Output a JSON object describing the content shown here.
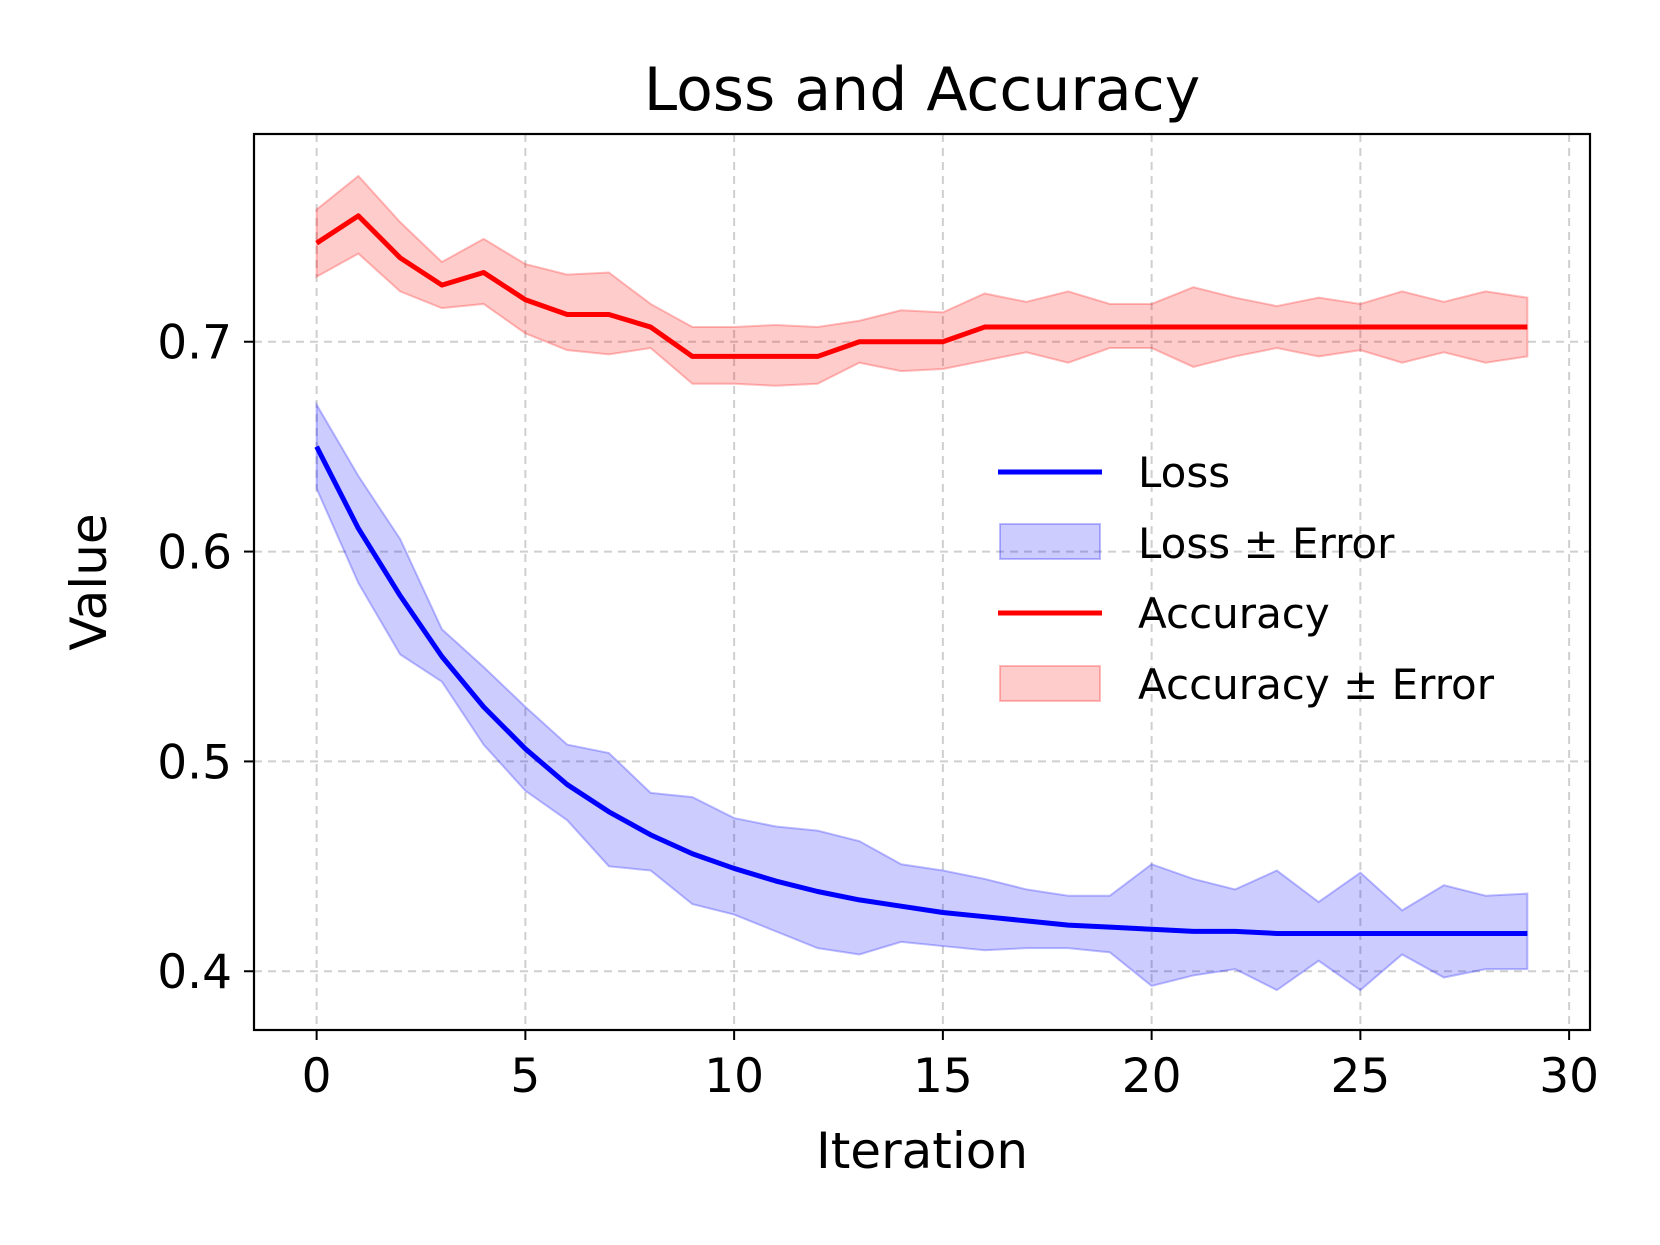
{
  "chart_data": {
    "type": "line",
    "title": "Loss and Accuracy",
    "xlabel": "Iteration",
    "ylabel": "Value",
    "xlim": [
      -1.5,
      30.5
    ],
    "ylim": [
      0.372,
      0.799
    ],
    "xticks": [
      0,
      5,
      10,
      15,
      20,
      25,
      30
    ],
    "xtick_labels": [
      "0",
      "5",
      "10",
      "15",
      "20",
      "25",
      "30"
    ],
    "yticks": [
      0.4,
      0.5,
      0.6,
      0.7
    ],
    "ytick_labels": [
      "0.4",
      "0.5",
      "0.6",
      "0.7"
    ],
    "grid": true,
    "legend_position": "center-right",
    "x": [
      0,
      1,
      2,
      3,
      4,
      5,
      6,
      7,
      8,
      9,
      10,
      11,
      12,
      13,
      14,
      15,
      16,
      17,
      18,
      19,
      20,
      21,
      22,
      23,
      24,
      25,
      26,
      27,
      28,
      29
    ],
    "series": [
      {
        "name": "Loss",
        "band_name": "Loss ± Error",
        "color": "#0000ff",
        "band_color": "#0000ff",
        "values": [
          0.65,
          0.611,
          0.579,
          0.55,
          0.526,
          0.506,
          0.489,
          0.476,
          0.465,
          0.456,
          0.449,
          0.443,
          0.438,
          0.434,
          0.431,
          0.428,
          0.426,
          0.424,
          0.422,
          0.421,
          0.42,
          0.419,
          0.419,
          0.418,
          0.418,
          0.418,
          0.418,
          0.418,
          0.418,
          0.418
        ],
        "upper": [
          0.67,
          0.636,
          0.606,
          0.563,
          0.545,
          0.526,
          0.508,
          0.504,
          0.485,
          0.483,
          0.473,
          0.469,
          0.467,
          0.462,
          0.451,
          0.448,
          0.444,
          0.439,
          0.436,
          0.436,
          0.451,
          0.444,
          0.439,
          0.448,
          0.433,
          0.447,
          0.429,
          0.441,
          0.436,
          0.437
        ],
        "lower": [
          0.63,
          0.585,
          0.551,
          0.538,
          0.508,
          0.486,
          0.472,
          0.45,
          0.448,
          0.432,
          0.427,
          0.419,
          0.411,
          0.408,
          0.414,
          0.412,
          0.41,
          0.411,
          0.411,
          0.409,
          0.393,
          0.398,
          0.401,
          0.391,
          0.405,
          0.391,
          0.408,
          0.397,
          0.401,
          0.401
        ]
      },
      {
        "name": "Accuracy",
        "band_name": "Accuracy ± Error",
        "color": "#ff0000",
        "band_color": "#ff0000",
        "values": [
          0.747,
          0.76,
          0.74,
          0.727,
          0.733,
          0.72,
          0.713,
          0.713,
          0.707,
          0.693,
          0.693,
          0.693,
          0.693,
          0.7,
          0.7,
          0.7,
          0.707,
          0.707,
          0.707,
          0.707,
          0.707,
          0.707,
          0.707,
          0.707,
          0.707,
          0.707,
          0.707,
          0.707,
          0.707,
          0.707
        ],
        "upper": [
          0.763,
          0.779,
          0.757,
          0.738,
          0.749,
          0.737,
          0.732,
          0.733,
          0.718,
          0.707,
          0.707,
          0.708,
          0.707,
          0.71,
          0.715,
          0.714,
          0.723,
          0.719,
          0.724,
          0.718,
          0.718,
          0.726,
          0.721,
          0.717,
          0.721,
          0.718,
          0.724,
          0.719,
          0.724,
          0.721
        ],
        "lower": [
          0.731,
          0.742,
          0.724,
          0.716,
          0.718,
          0.704,
          0.696,
          0.694,
          0.697,
          0.68,
          0.68,
          0.679,
          0.68,
          0.69,
          0.686,
          0.687,
          0.691,
          0.695,
          0.69,
          0.697,
          0.697,
          0.688,
          0.693,
          0.697,
          0.693,
          0.696,
          0.69,
          0.695,
          0.69,
          0.693
        ]
      }
    ]
  }
}
